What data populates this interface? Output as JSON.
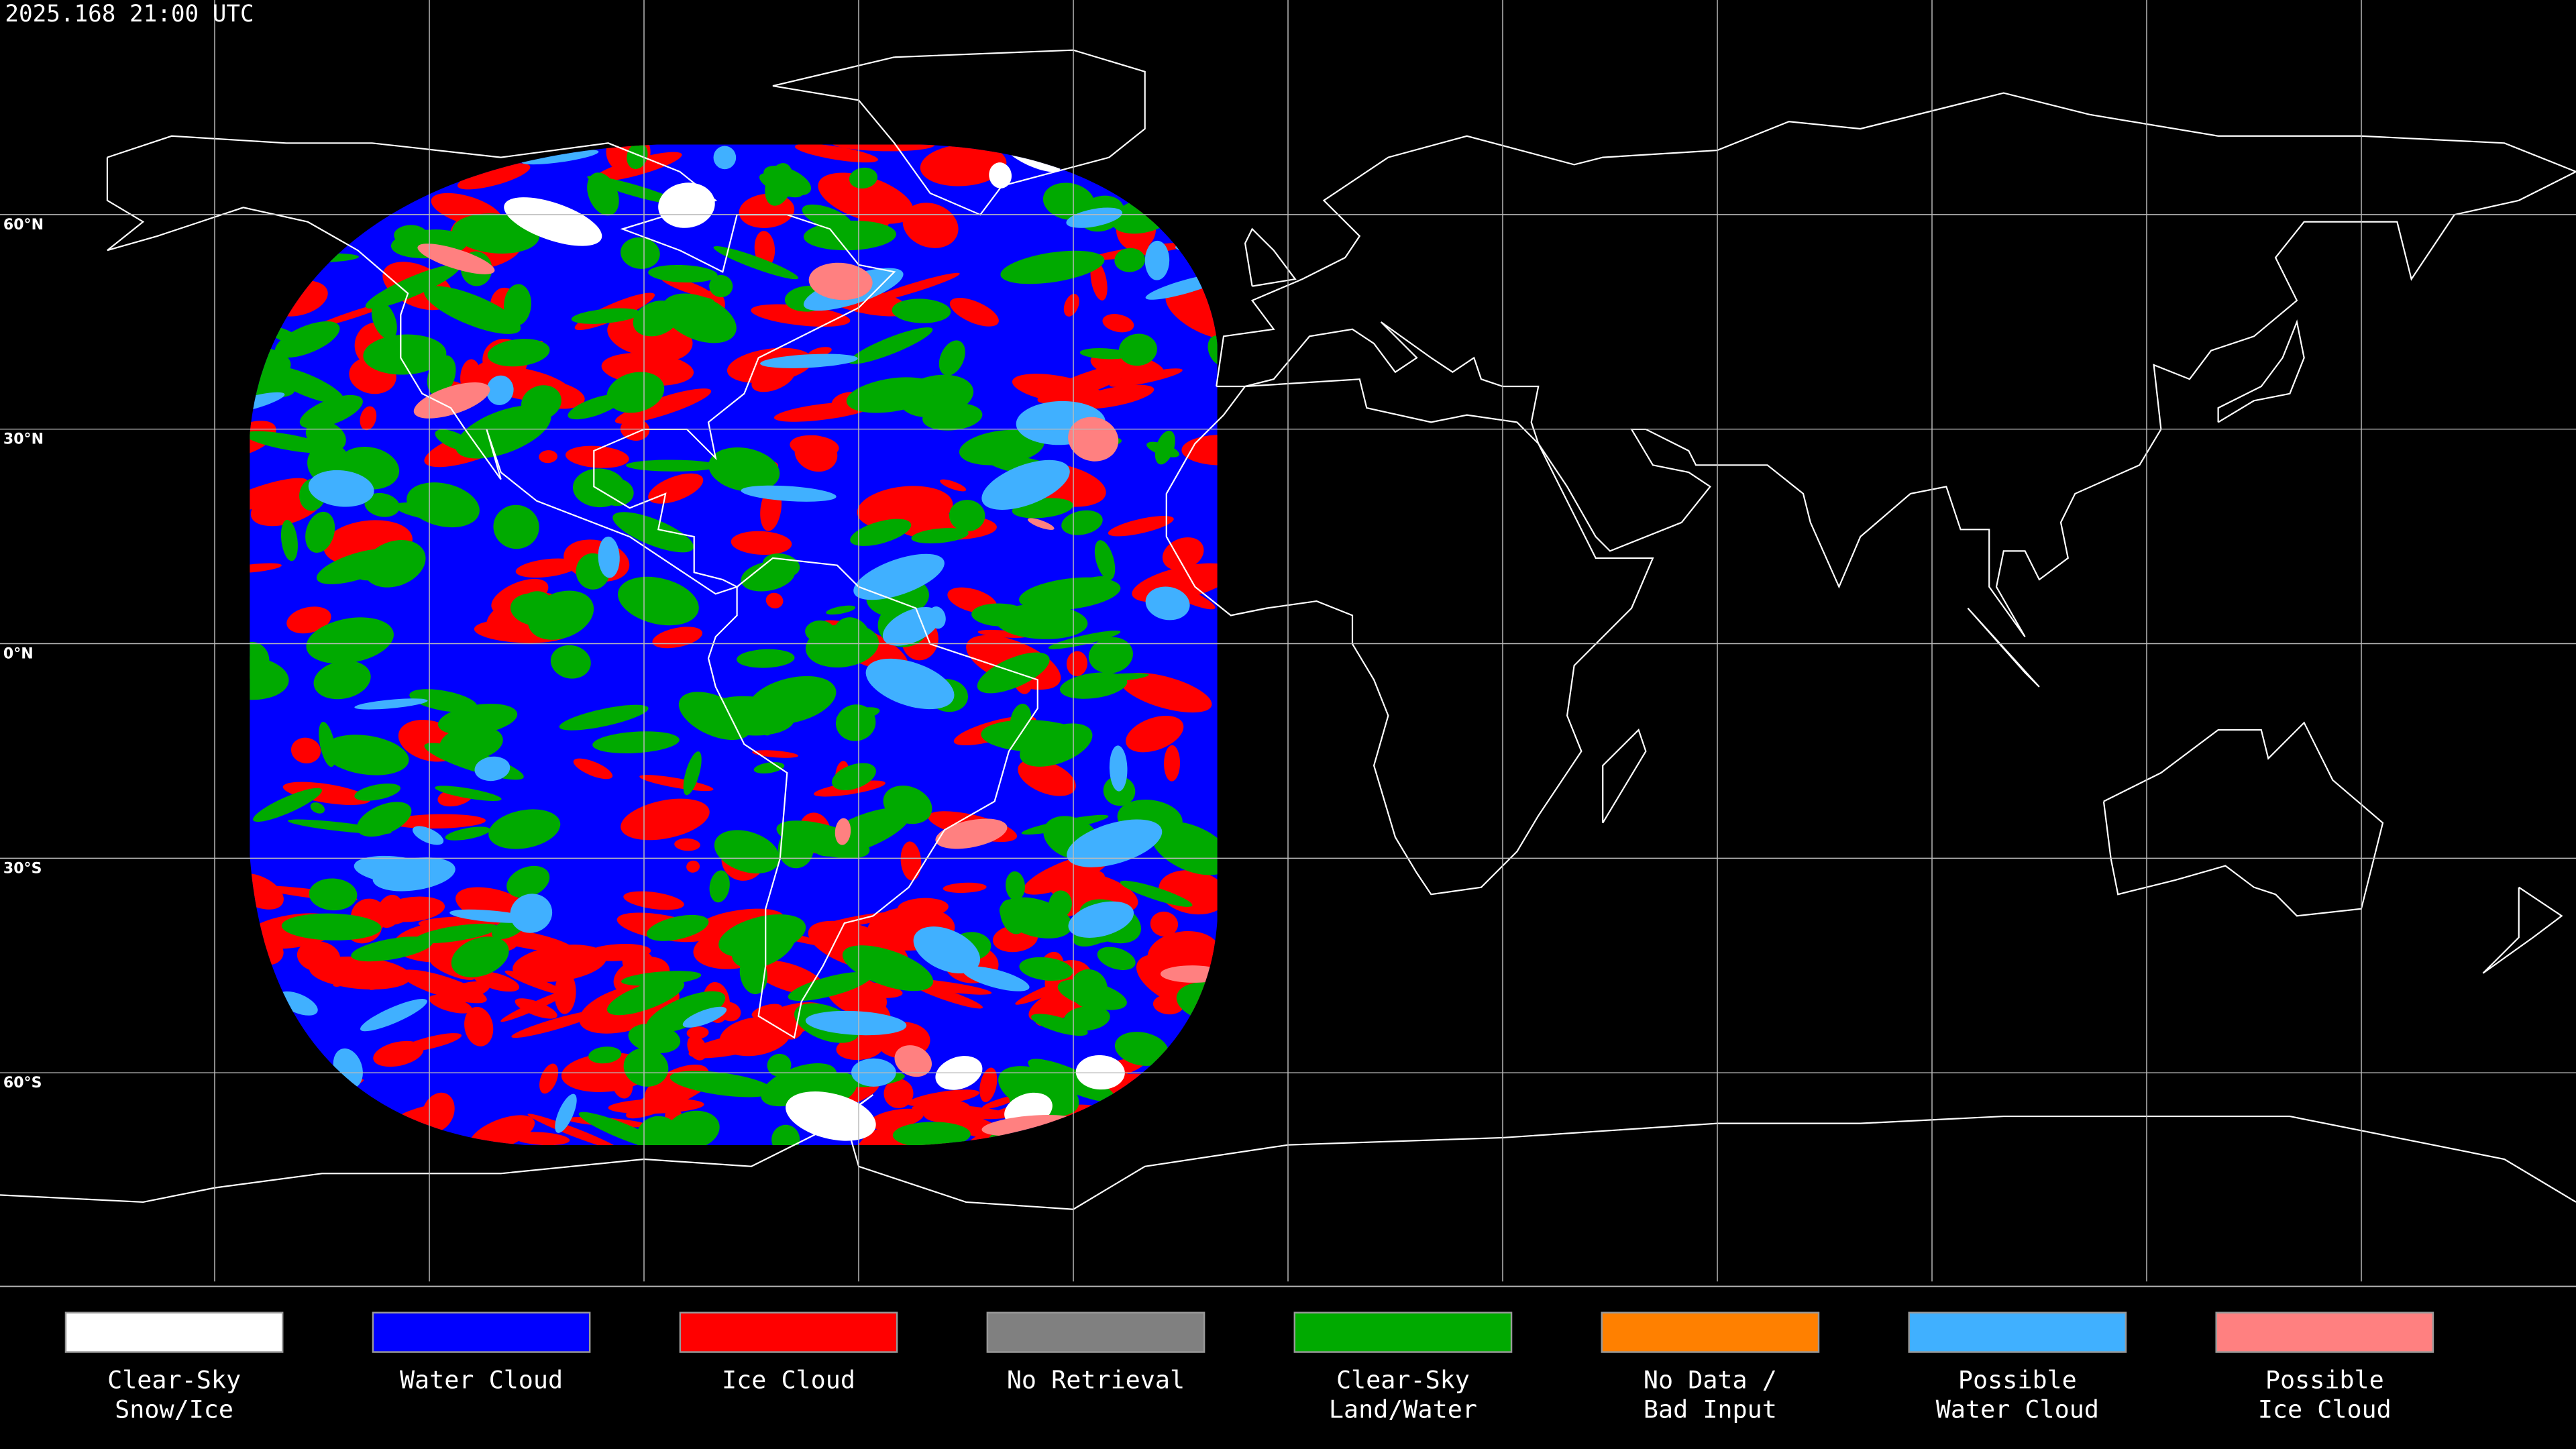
{
  "header": {
    "timestamp": "2025.168 21:00 UTC"
  },
  "map": {
    "latitude_labels": [
      "60°N",
      "30°N",
      "0°N",
      "30°S",
      "60°S"
    ]
  },
  "legend": [
    {
      "label": [
        "Clear-Sky",
        "Snow/Ice"
      ],
      "color": "#ffffff"
    },
    {
      "label": [
        "Water Cloud"
      ],
      "color": "#0000ff"
    },
    {
      "label": [
        "Ice Cloud"
      ],
      "color": "#ff0000"
    },
    {
      "label": [
        "No Retrieval"
      ],
      "color": "#808080"
    },
    {
      "label": [
        "Clear-Sky",
        "Land/Water"
      ],
      "color": "#00aa00"
    },
    {
      "label": [
        "No Data /",
        "Bad Input"
      ],
      "color": "#ff8000"
    },
    {
      "label": [
        "Possible",
        "Water Cloud"
      ],
      "color": "#40b0ff"
    },
    {
      "label": [
        "Possible",
        "Ice Cloud"
      ],
      "color": "#ff8080"
    }
  ]
}
